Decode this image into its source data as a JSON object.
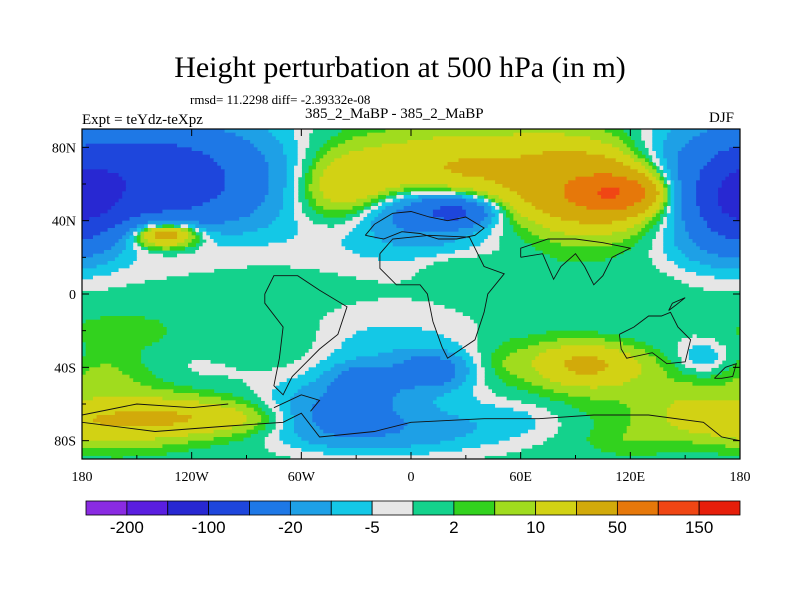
{
  "chart_data": {
    "type": "heatmap",
    "title": "Height perturbation at 500 hPa (in m)",
    "stats_text": "rmsd= 11.2298 diff= -2.39332e-08",
    "left_label": "Expt = teYdz-teXpz",
    "center_label": "385_2_MaBP - 385_2_MaBP",
    "right_label": "DJF",
    "x_range": [
      -180,
      180
    ],
    "y_range": [
      -90,
      90
    ],
    "x_ticks": [
      {
        "value": -180,
        "label": "180"
      },
      {
        "value": -120,
        "label": "120W"
      },
      {
        "value": -60,
        "label": "60W"
      },
      {
        "value": 0,
        "label": "0"
      },
      {
        "value": 60,
        "label": "60E"
      },
      {
        "value": 120,
        "label": "120E"
      },
      {
        "value": 180,
        "label": "180"
      }
    ],
    "y_ticks": [
      {
        "value": 80,
        "label": "80N"
      },
      {
        "value": 40,
        "label": "40N"
      },
      {
        "value": 0,
        "label": "0"
      },
      {
        "value": -40,
        "label": "40S"
      },
      {
        "value": -80,
        "label": "80S"
      }
    ],
    "colorbar": {
      "colors": [
        "#8a2be2",
        "#5a1ee0",
        "#2828d2",
        "#1e46dc",
        "#1e78e6",
        "#1ea0e6",
        "#14c8e6",
        "#e6e6e6",
        "#14d28c",
        "#32d21e",
        "#a0dc1e",
        "#d2d214",
        "#d2aa0a",
        "#e6780a",
        "#f04614",
        "#e61e0a"
      ],
      "labels": [
        {
          "after_box": 1,
          "text": "-200"
        },
        {
          "after_box": 3,
          "text": "-100"
        },
        {
          "after_box": 5,
          "text": "-20"
        },
        {
          "after_box": 7,
          "text": "-5"
        },
        {
          "after_box": 9,
          "text": "2"
        },
        {
          "after_box": 11,
          "text": "10"
        },
        {
          "after_box": 13,
          "text": "50"
        },
        {
          "after_box": 15,
          "text": "150"
        }
      ]
    },
    "features": [
      {
        "lon": -180,
        "lat": 62,
        "rlon": 55,
        "rlat": 24,
        "value": -30
      },
      {
        "lon": -140,
        "lat": 62,
        "rlon": 35,
        "rlat": 18,
        "value": -60
      },
      {
        "lon": -90,
        "lat": 68,
        "rlon": 40,
        "rlat": 18,
        "value": -10
      },
      {
        "lon": -145,
        "lat": 33,
        "rlon": 30,
        "rlat": 10,
        "value": 12
      },
      {
        "lon": -135,
        "lat": 33,
        "rlon": 13,
        "rlat": 5,
        "value": 40
      },
      {
        "lon": -55,
        "lat": 55,
        "rlon": 25,
        "rlat": 18,
        "value": -4
      },
      {
        "lon": -20,
        "lat": 72,
        "rlon": 55,
        "rlat": 14,
        "value": 8
      },
      {
        "lon": -35,
        "lat": 55,
        "rlon": 25,
        "rlat": 14,
        "value": 25
      },
      {
        "lon": 25,
        "lat": 62,
        "rlon": 18,
        "rlat": 14,
        "value": 8
      },
      {
        "lon": 60,
        "lat": 70,
        "rlon": 50,
        "rlat": 15,
        "value": 8
      },
      {
        "lon": 105,
        "lat": 60,
        "rlon": 45,
        "rlat": 25,
        "value": 14
      },
      {
        "lon": 105,
        "lat": 56,
        "rlon": 30,
        "rlat": 14,
        "value": 35
      },
      {
        "lon": 110,
        "lat": 55,
        "rlon": 14,
        "rlat": 6,
        "value": 70
      },
      {
        "lon": 0,
        "lat": 37,
        "rlon": 40,
        "rlat": 15,
        "value": -12
      },
      {
        "lon": 5,
        "lat": 45,
        "rlon": 22,
        "rlat": 9,
        "value": -25
      },
      {
        "lon": 25,
        "lat": 45,
        "rlon": 12,
        "rlat": 5,
        "value": -45
      },
      {
        "lon": 140,
        "lat": 75,
        "rlon": 20,
        "rlat": 10,
        "value": -4
      },
      {
        "lon": 165,
        "lat": 50,
        "rlon": 20,
        "rlat": 22,
        "value": -8
      },
      {
        "lon": 180,
        "lat": 50,
        "rlon": 15,
        "rlat": 15,
        "value": -40
      },
      {
        "lon": -180,
        "lat": 50,
        "rlon": 15,
        "rlat": 15,
        "value": -40
      },
      {
        "lon": 25,
        "lat": 15,
        "rlon": 15,
        "rlat": 5,
        "value": 4
      },
      {
        "lon": 160,
        "lat": 25,
        "rlon": 18,
        "rlat": 8,
        "value": -4
      },
      {
        "lon": -160,
        "lat": -20,
        "rlon": 22,
        "rlat": 7,
        "value": 4
      },
      {
        "lon": -165,
        "lat": -40,
        "rlon": 18,
        "rlat": 8,
        "value": 4
      },
      {
        "lon": -115,
        "lat": -42,
        "rlon": 30,
        "rlat": 10,
        "value": -4
      },
      {
        "lon": -70,
        "lat": -30,
        "rlon": 30,
        "rlat": 12,
        "value": 4
      },
      {
        "lon": -150,
        "lat": -57,
        "rlon": 35,
        "rlat": 10,
        "value": 6
      },
      {
        "lon": -130,
        "lat": -68,
        "rlon": 55,
        "rlat": 7,
        "value": 18
      },
      {
        "lon": -160,
        "lat": -78,
        "rlon": 25,
        "rlat": 7,
        "value": 6
      },
      {
        "lon": -30,
        "lat": -30,
        "rlon": 35,
        "rlat": 15,
        "value": -4
      },
      {
        "lon": 10,
        "lat": -45,
        "rlon": 45,
        "rlat": 22,
        "value": -8
      },
      {
        "lon": -25,
        "lat": -48,
        "rlon": 12,
        "rlat": 6,
        "value": -30
      },
      {
        "lon": 10,
        "lat": -42,
        "rlon": 12,
        "rlat": 6,
        "value": -30
      },
      {
        "lon": -40,
        "lat": -65,
        "rlon": 25,
        "rlat": 10,
        "value": -25
      },
      {
        "lon": -10,
        "lat": -75,
        "rlon": 40,
        "rlat": 8,
        "value": -12
      },
      {
        "lon": 60,
        "lat": -68,
        "rlon": 20,
        "rlat": 7,
        "value": -4
      },
      {
        "lon": 50,
        "lat": -38,
        "rlon": 10,
        "rlat": 10,
        "value": 4
      },
      {
        "lon": 100,
        "lat": -40,
        "rlon": 50,
        "rlat": 17,
        "value": 8
      },
      {
        "lon": 95,
        "lat": -38,
        "rlon": 20,
        "rlat": 8,
        "value": 18
      },
      {
        "lon": 110,
        "lat": -25,
        "rlon": 25,
        "rlat": 10,
        "value": -4
      },
      {
        "lon": 155,
        "lat": -30,
        "rlon": 20,
        "rlat": 12,
        "value": -4
      },
      {
        "lon": 160,
        "lat": -35,
        "rlon": 10,
        "rlat": 6,
        "value": -8
      },
      {
        "lon": 150,
        "lat": -60,
        "rlon": 12,
        "rlat": 7,
        "value": 4
      },
      {
        "lon": 165,
        "lat": -72,
        "rlon": 20,
        "rlat": 7,
        "value": 4
      },
      {
        "lon": 120,
        "lat": -80,
        "rlon": 20,
        "rlat": 6,
        "value": 4
      }
    ],
    "coastlines": [
      [
        [
          -25,
          32
        ],
        [
          -20,
          38
        ],
        [
          -10,
          44
        ],
        [
          0,
          45
        ],
        [
          10,
          42
        ],
        [
          20,
          40
        ],
        [
          30,
          42
        ],
        [
          40,
          36
        ],
        [
          35,
          32
        ],
        [
          25,
          30
        ],
        [
          15,
          30
        ],
        [
          5,
          33
        ],
        [
          -5,
          34
        ],
        [
          -15,
          30
        ],
        [
          -25,
          32
        ]
      ],
      [
        [
          -17,
          22
        ],
        [
          -10,
          30
        ],
        [
          10,
          32
        ],
        [
          32,
          31
        ],
        [
          40,
          15
        ],
        [
          51,
          11
        ],
        [
          42,
          0
        ],
        [
          40,
          -10
        ],
        [
          35,
          -25
        ],
        [
          20,
          -35
        ],
        [
          17,
          -29
        ],
        [
          12,
          -15
        ],
        [
          9,
          0
        ],
        [
          5,
          5
        ],
        [
          -8,
          5
        ],
        [
          -17,
          14
        ],
        [
          -17,
          22
        ]
      ],
      [
        [
          -80,
          0
        ],
        [
          -75,
          10
        ],
        [
          -62,
          10
        ],
        [
          -50,
          2
        ],
        [
          -35,
          -7
        ],
        [
          -40,
          -22
        ],
        [
          -50,
          -30
        ],
        [
          -58,
          -38
        ],
        [
          -65,
          -45
        ],
        [
          -70,
          -55
        ],
        [
          -75,
          -50
        ],
        [
          -72,
          -35
        ],
        [
          -70,
          -18
        ],
        [
          -80,
          -5
        ],
        [
          -80,
          0
        ]
      ],
      [
        [
          60,
          20
        ],
        [
          72,
          22
        ],
        [
          78,
          8
        ],
        [
          82,
          15
        ],
        [
          90,
          22
        ],
        [
          95,
          15
        ],
        [
          100,
          5
        ],
        [
          105,
          10
        ],
        [
          110,
          20
        ],
        [
          120,
          25
        ],
        [
          105,
          28
        ],
        [
          90,
          30
        ],
        [
          75,
          30
        ],
        [
          60,
          25
        ],
        [
          60,
          20
        ]
      ],
      [
        [
          114,
          -22
        ],
        [
          122,
          -18
        ],
        [
          130,
          -12
        ],
        [
          137,
          -12
        ],
        [
          142,
          -10
        ],
        [
          146,
          -18
        ],
        [
          153,
          -25
        ],
        [
          150,
          -37
        ],
        [
          140,
          -38
        ],
        [
          132,
          -32
        ],
        [
          118,
          -35
        ],
        [
          115,
          -30
        ],
        [
          114,
          -22
        ]
      ],
      [
        [
          -180,
          -70
        ],
        [
          -140,
          -75
        ],
        [
          -100,
          -72
        ],
        [
          -70,
          -70
        ],
        [
          -60,
          -65
        ],
        [
          -50,
          -78
        ],
        [
          -20,
          -75
        ],
        [
          0,
          -70
        ],
        [
          40,
          -68
        ],
        [
          70,
          -68
        ],
        [
          100,
          -66
        ],
        [
          130,
          -66
        ],
        [
          160,
          -70
        ],
        [
          170,
          -78
        ],
        [
          180,
          -80
        ]
      ],
      [
        [
          -180,
          -66
        ],
        [
          -150,
          -60
        ],
        [
          -120,
          -62
        ],
        [
          -100,
          -60
        ]
      ],
      [
        [
          -75,
          -62
        ],
        [
          -60,
          -55
        ],
        [
          -50,
          -58
        ],
        [
          -55,
          -64
        ]
      ],
      [
        [
          166,
          -46
        ],
        [
          172,
          -40
        ],
        [
          178,
          -38
        ],
        [
          176,
          -45
        ],
        [
          170,
          -46
        ],
        [
          166,
          -46
        ]
      ],
      [
        [
          150,
          -2
        ],
        [
          145,
          -6
        ],
        [
          141,
          -9
        ],
        [
          143,
          -5
        ],
        [
          150,
          -2
        ]
      ]
    ]
  }
}
